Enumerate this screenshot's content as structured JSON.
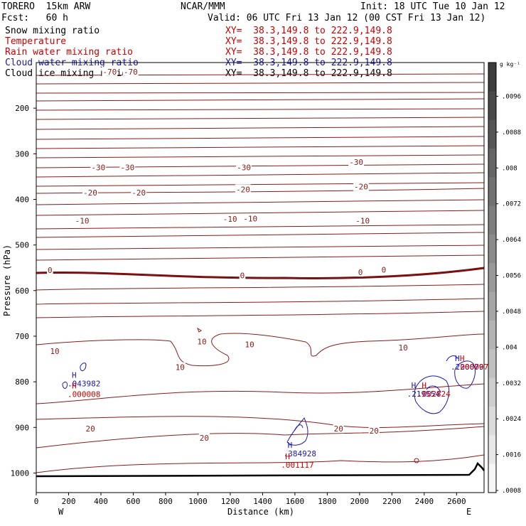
{
  "header": {
    "model": "TORERO  15km ARW",
    "org": "NCAR/MMM",
    "init": "Init: 18 UTC Tue 10 Jan 12",
    "fcst": "Fcst:   60 h",
    "valid": "Valid: 06 UTC Fri 13 Jan 12 (00 CST Fri 13 Jan 12)"
  },
  "fields": [
    {
      "name": "Snow mixing ratio",
      "xy": "",
      "color": "#000000"
    },
    {
      "name": "Temperature",
      "xy": "XY=  38.3,149.8 to 222.9,149.8",
      "color": "#cc0000"
    },
    {
      "name": "Rain water mixing ratio",
      "xy": "XY=  38.3,149.8 to 222.9,149.8",
      "color": "#cc0000"
    },
    {
      "name": "Cloud water mixing ratio",
      "xy": "XY=  38.3,149.8 to 222.9,149.8",
      "color": "#1a1aa8"
    },
    {
      "name": "Cloud ice mixing ratio",
      "xy": "XY=  38.3,149.8 to 222.9,149.8",
      "color": "#000000"
    }
  ],
  "snow_xy": "XY=  38.3,149.8 to 222.9,149.8",
  "colors": {
    "temperature": "#8b1a1a",
    "freezing_line": "#7a1010",
    "cloud_water": "#1a1aa8",
    "rain": "#cc0000",
    "terrain": "#000000"
  },
  "chart_data": {
    "type": "contour",
    "xlabel": "Distance (km)",
    "ylabel": "Pressure (hPa)",
    "x_ticks": [
      0,
      200,
      400,
      600,
      800,
      1000,
      1200,
      1400,
      1600,
      1800,
      2000,
      2200,
      2400,
      2600
    ],
    "xlim": [
      0,
      2770
    ],
    "y_ticks": [
      200,
      300,
      400,
      500,
      600,
      700,
      800,
      900,
      1000
    ],
    "ylim": [
      100,
      1050
    ],
    "x_end_labels": {
      "left": "W",
      "right": "E"
    },
    "colorbar": {
      "unit": "g kg⁻¹",
      "ticks": [
        ".0096",
        ".0088",
        ".008",
        ".0072",
        ".0064",
        ".0056",
        ".0048",
        ".004",
        ".0032",
        ".0024",
        ".0016",
        ".0008"
      ]
    },
    "temperature_labels": [
      {
        "x": 450,
        "p": 120,
        "v": "-70"
      },
      {
        "x": 580,
        "p": 120,
        "v": "-70"
      },
      {
        "x": 380,
        "p": 330,
        "v": "-30"
      },
      {
        "x": 560,
        "p": 330,
        "v": "-30"
      },
      {
        "x": 1280,
        "p": 330,
        "v": "-30"
      },
      {
        "x": 1975,
        "p": 318,
        "v": "-30"
      },
      {
        "x": 330,
        "p": 385,
        "v": "-20"
      },
      {
        "x": 630,
        "p": 385,
        "v": "-20"
      },
      {
        "x": 1275,
        "p": 378,
        "v": "-20"
      },
      {
        "x": 2005,
        "p": 372,
        "v": "-20"
      },
      {
        "x": 280,
        "p": 447,
        "v": "-10"
      },
      {
        "x": 1195,
        "p": 443,
        "v": "-10"
      },
      {
        "x": 1320,
        "p": 442,
        "v": "-10"
      },
      {
        "x": 2015,
        "p": 447,
        "v": "-10"
      },
      {
        "x": 110,
        "p": 555,
        "v": "0"
      },
      {
        "x": 1300,
        "p": 567,
        "v": "0"
      },
      {
        "x": 2030,
        "p": 560,
        "v": "0"
      },
      {
        "x": 2175,
        "p": 554,
        "v": "0"
      },
      {
        "x": 125,
        "p": 733,
        "v": "10"
      },
      {
        "x": 1035,
        "p": 712,
        "v": "10"
      },
      {
        "x": 1330,
        "p": 718,
        "v": "10"
      },
      {
        "x": 900,
        "p": 768,
        "v": "10"
      },
      {
        "x": 2280,
        "p": 725,
        "v": "10"
      },
      {
        "x": 345,
        "p": 903,
        "v": "20"
      },
      {
        "x": 1050,
        "p": 923,
        "v": "20"
      },
      {
        "x": 1880,
        "p": 903,
        "v": "20"
      },
      {
        "x": 2100,
        "p": 907,
        "v": "20"
      }
    ],
    "extrema": [
      {
        "x": 220,
        "p": 791,
        "mark": "H",
        "value": "043982",
        "series": "cloud_water"
      },
      {
        "x": 220,
        "p": 815,
        "mark": "H",
        "value": "000008",
        "series": "rain"
      },
      {
        "x": 1555,
        "p": 945,
        "mark": "H",
        "value": "384928",
        "series": "cloud_water"
      },
      {
        "x": 1540,
        "p": 970,
        "mark": "H",
        "value": "001117",
        "series": "rain"
      },
      {
        "x": 2320,
        "p": 814,
        "mark": "H",
        "value": "219554",
        "series": "cloud_water"
      },
      {
        "x": 2385,
        "p": 814,
        "mark": "H",
        "value": "002824",
        "series": "rain"
      },
      {
        "x": 2590,
        "p": 755,
        "mark": "H",
        "value": "220079",
        "series": "cloud_water"
      },
      {
        "x": 2620,
        "p": 755,
        "mark": "H",
        "value": "000007",
        "series": "rain"
      }
    ]
  }
}
